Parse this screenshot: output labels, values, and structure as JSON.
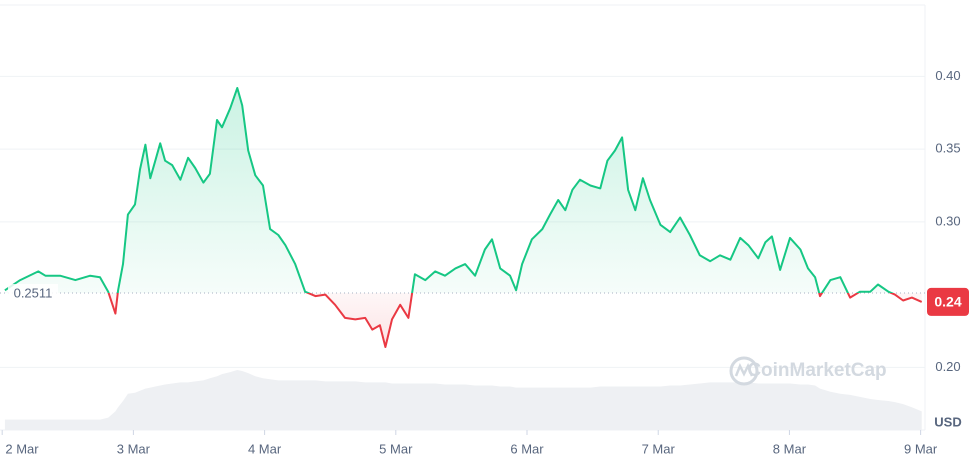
{
  "chart_data": {
    "type": "line",
    "x": [
      0.5,
      3.3,
      6.6,
      7.9,
      10.6,
      13.4,
      16.1,
      17.9,
      19.4,
      20.7,
      21.2,
      22.1,
      23.0,
      24.3,
      25.2,
      26.2,
      27.1,
      28.0,
      28.9,
      29.8,
      31.1,
      32.6,
      34.0,
      35.3,
      36.8,
      38.0,
      39.3,
      40.2,
      41.7,
      43.0,
      43.9,
      45.0,
      46.3,
      47.7,
      49.0,
      50.5,
      51.8,
      53.6,
      55.4,
      57.3,
      59.1,
      60.9,
      62.7,
      64.6,
      66.4,
      67.7,
      69.1,
      70.1,
      71.3,
      72.8,
      74.3,
      75.5,
      77.4,
      79.2,
      81.0,
      82.9,
      84.7,
      86.5,
      88.3,
      89.6,
      91.1,
      92.9,
      94.0,
      95.1,
      96.9,
      98.8,
      100.2,
      101.7,
      103.0,
      104.3,
      105.7,
      107.6,
      109.4,
      110.7,
      112.1,
      113.4,
      114.5,
      115.8,
      117.2,
      118.5,
      120.4,
      122.2,
      124.0,
      125.8,
      127.6,
      129.5,
      131.3,
      133.2,
      135.0,
      136.5,
      138.3,
      139.6,
      140.8,
      142.3,
      144.1,
      146.0,
      147.4,
      148.7,
      149.6,
      151.5,
      153.3,
      155.1,
      156.9,
      158.8,
      160.2,
      162.1,
      163.3,
      164.8,
      166.4,
      168.2
    ],
    "values": [
      0.253,
      0.26,
      0.266,
      0.263,
      0.263,
      0.26,
      0.263,
      0.262,
      0.252,
      0.237,
      0.253,
      0.271,
      0.305,
      0.312,
      0.336,
      0.353,
      0.33,
      0.342,
      0.354,
      0.342,
      0.339,
      0.329,
      0.344,
      0.337,
      0.327,
      0.333,
      0.37,
      0.365,
      0.378,
      0.392,
      0.38,
      0.349,
      0.332,
      0.325,
      0.295,
      0.291,
      0.284,
      0.271,
      0.252,
      0.249,
      0.25,
      0.243,
      0.234,
      0.233,
      0.234,
      0.226,
      0.229,
      0.214,
      0.233,
      0.243,
      0.234,
      0.264,
      0.26,
      0.266,
      0.263,
      0.268,
      0.271,
      0.263,
      0.281,
      0.288,
      0.268,
      0.263,
      0.253,
      0.271,
      0.288,
      0.295,
      0.305,
      0.315,
      0.308,
      0.322,
      0.329,
      0.325,
      0.323,
      0.342,
      0.349,
      0.358,
      0.322,
      0.308,
      0.33,
      0.315,
      0.298,
      0.293,
      0.303,
      0.291,
      0.277,
      0.273,
      0.277,
      0.274,
      0.289,
      0.284,
      0.275,
      0.286,
      0.29,
      0.267,
      0.289,
      0.281,
      0.268,
      0.262,
      0.249,
      0.26,
      0.262,
      0.248,
      0.252,
      0.252,
      0.257,
      0.252,
      0.25,
      0.246,
      0.248,
      0.245
    ],
    "volume": [
      10,
      10,
      10,
      10,
      10,
      10,
      10,
      10,
      12,
      18,
      22,
      28,
      35,
      36,
      38,
      40,
      41,
      42,
      43,
      44,
      45,
      46,
      46,
      47,
      48,
      50,
      52,
      54,
      56,
      58,
      57,
      55,
      52,
      50,
      49,
      48,
      48,
      48,
      48,
      48,
      47,
      47,
      47,
      47,
      46,
      46,
      46,
      46,
      45,
      45,
      45,
      45,
      45,
      45,
      44,
      44,
      44,
      43,
      43,
      43,
      42,
      42,
      41,
      41,
      41,
      41,
      41,
      41,
      41,
      41,
      41,
      41,
      42,
      42,
      42,
      42,
      42,
      42,
      42,
      42,
      42,
      43,
      43,
      44,
      45,
      46,
      46,
      46,
      46,
      46,
      45,
      45,
      45,
      45,
      45,
      44,
      44,
      43,
      40,
      37,
      35,
      34,
      32,
      30,
      29,
      28,
      27,
      25,
      22,
      18
    ],
    "baseline": 0.2511,
    "current_price": 0.24,
    "unit": "USD",
    "watermark": "CoinMarketCap",
    "up_color": "#16c784",
    "down_color": "#ea3943",
    "xlim": [
      -0.4,
      168.8
    ],
    "xticks": [
      {
        "value": 0,
        "label": "2 Mar"
      },
      {
        "value": 24,
        "label": "3 Mar"
      },
      {
        "value": 48,
        "label": "4 Mar"
      },
      {
        "value": 72,
        "label": "5 Mar"
      },
      {
        "value": 96,
        "label": "6 Mar"
      },
      {
        "value": 120,
        "label": "7 Mar"
      },
      {
        "value": 144,
        "label": "8 Mar"
      },
      {
        "value": 168,
        "label": "9 Mar"
      }
    ],
    "ylim": [
      0.157,
      0.449
    ],
    "yticks": [
      {
        "value": 0.2,
        "label": "0.20"
      },
      {
        "value": 0.3,
        "label": "0.30"
      },
      0.35,
      {
        "value": 0.4,
        "label": "0.40"
      }
    ],
    "grid": true
  }
}
